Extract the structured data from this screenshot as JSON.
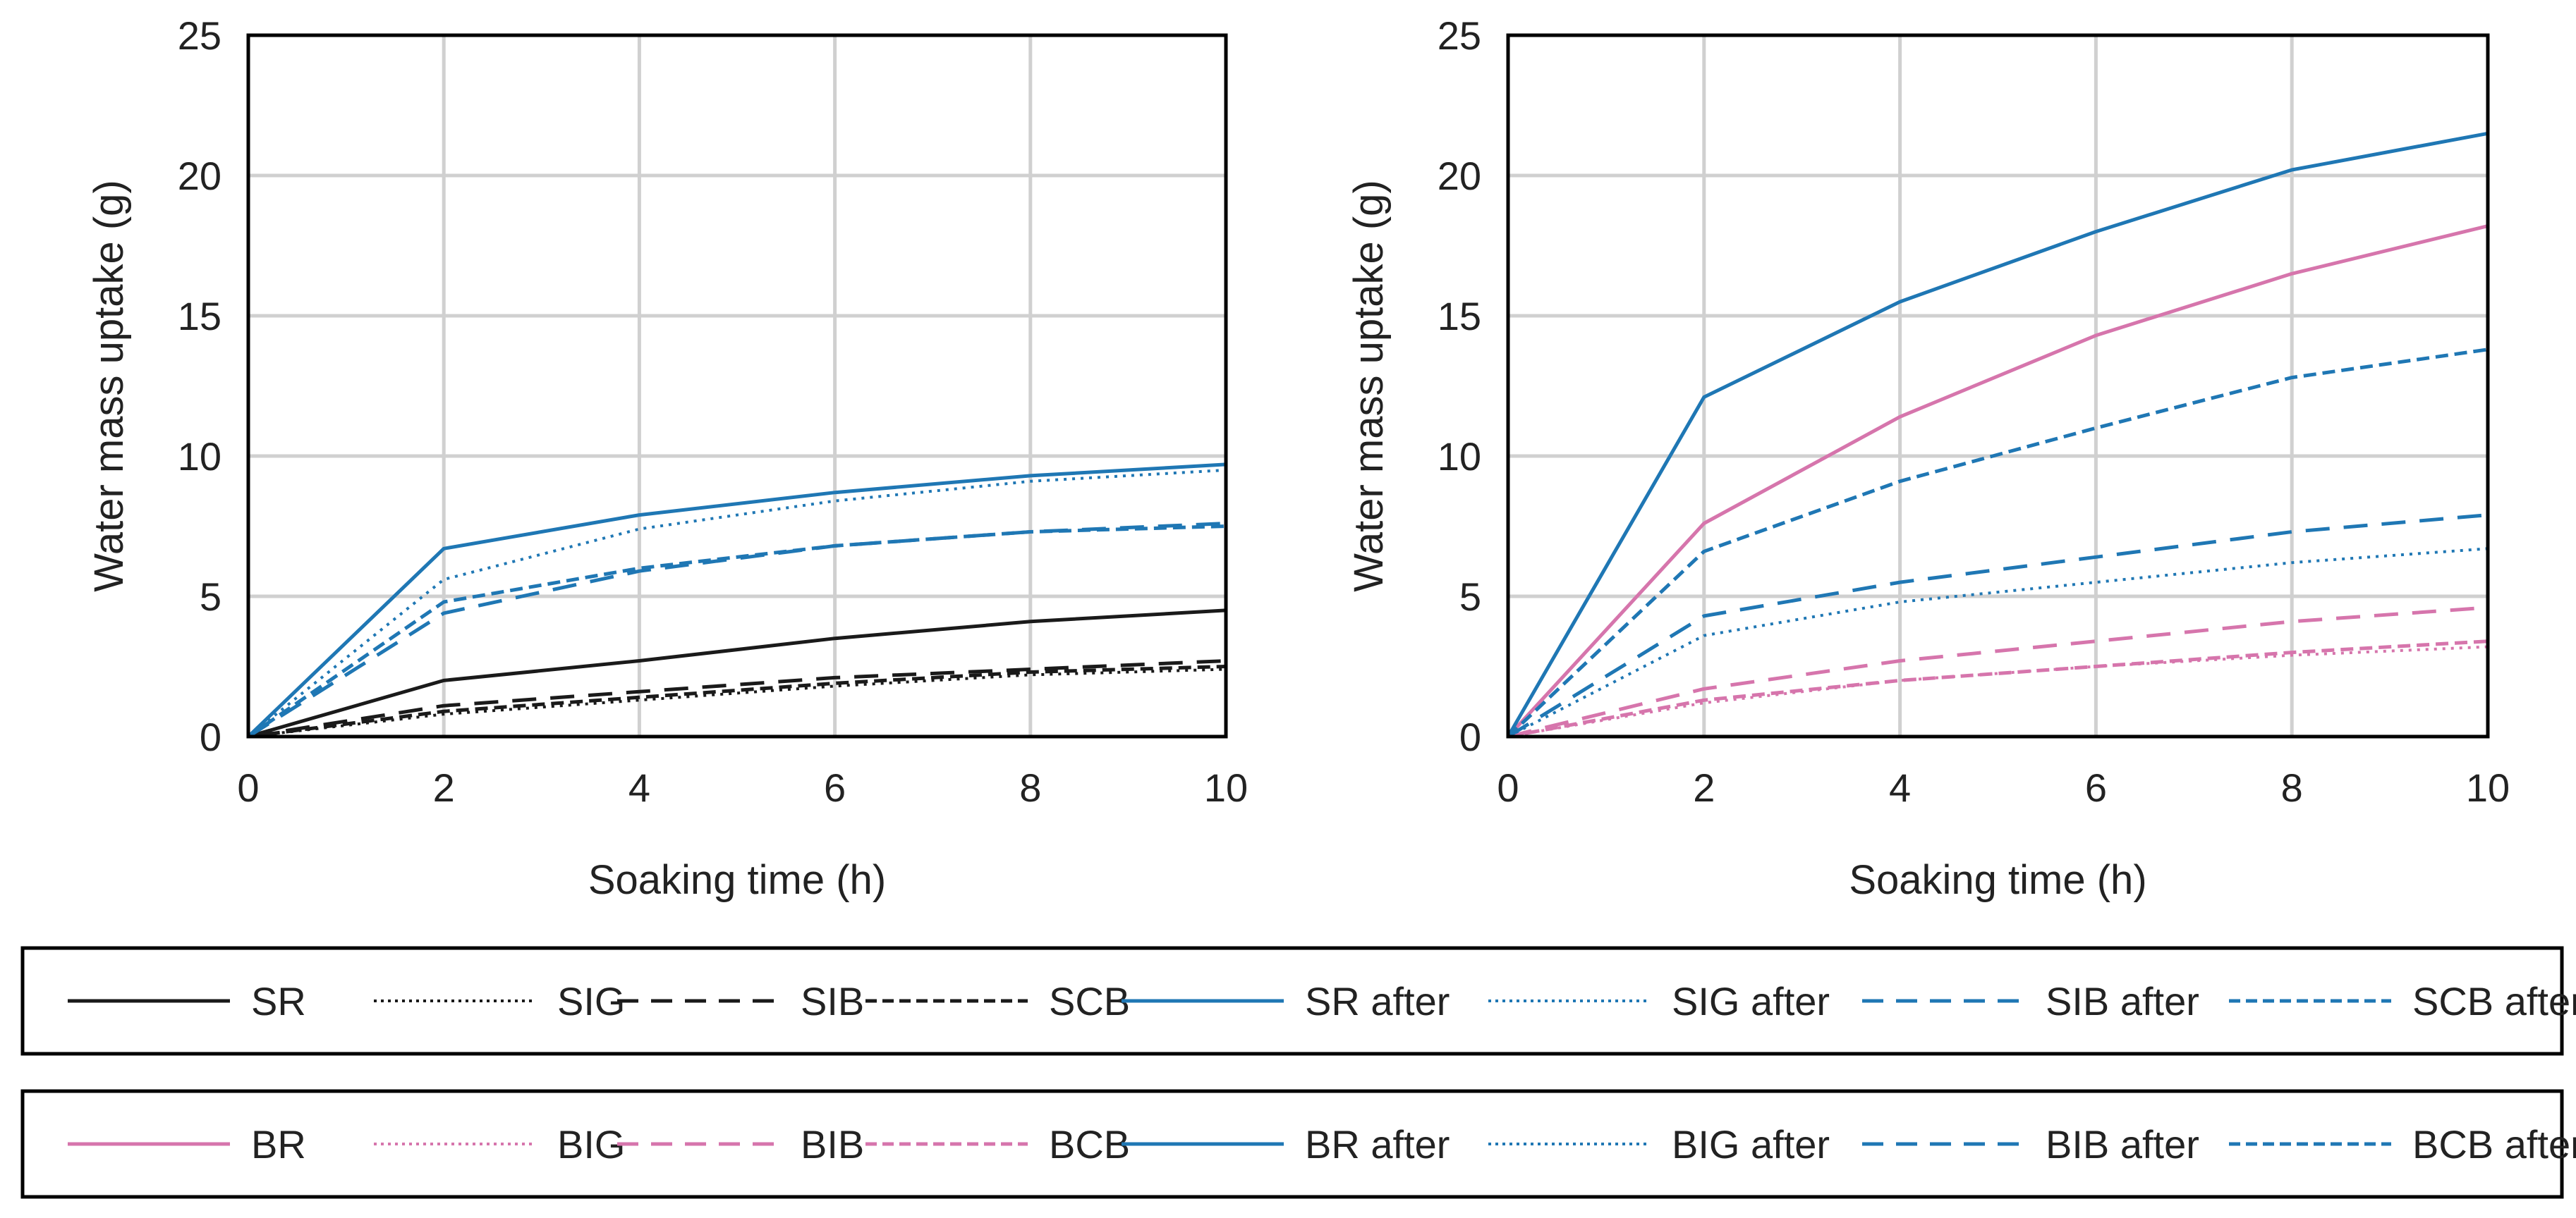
{
  "colors": {
    "black": "#1a1a1a",
    "blue": "#1f77b4",
    "pink": "#d675ac",
    "grid": "#d0d0d0",
    "axis": "#000000"
  },
  "chart_data": [
    {
      "type": "line",
      "title": "",
      "xlabel": "Soaking time (h)",
      "ylabel": "Water mass uptake (g)",
      "xlim": [
        0,
        10
      ],
      "ylim": [
        0,
        25
      ],
      "xticks": [
        0,
        2,
        4,
        6,
        8,
        10
      ],
      "yticks": [
        0,
        5,
        10,
        15,
        20,
        25
      ],
      "grid": true,
      "legend": "below",
      "x": [
        0,
        2,
        4,
        6,
        8,
        10
      ],
      "series": [
        {
          "name": "SR",
          "color": "black",
          "dash": "solid",
          "values": [
            0,
            2.0,
            2.7,
            3.5,
            4.1,
            4.5
          ]
        },
        {
          "name": "SIG",
          "color": "black",
          "dash": "dotted",
          "values": [
            0,
            0.8,
            1.3,
            1.8,
            2.2,
            2.4
          ]
        },
        {
          "name": "SIB",
          "color": "black",
          "dash": "longdash",
          "values": [
            0,
            1.1,
            1.6,
            2.1,
            2.4,
            2.7
          ]
        },
        {
          "name": "SCB",
          "color": "black",
          "dash": "shortdash",
          "values": [
            0,
            0.9,
            1.4,
            1.9,
            2.3,
            2.5
          ]
        },
        {
          "name": "SR after",
          "color": "blue",
          "dash": "solid",
          "values": [
            0,
            6.7,
            7.9,
            8.7,
            9.3,
            9.7
          ]
        },
        {
          "name": "SIG after",
          "color": "blue",
          "dash": "dotted",
          "values": [
            0,
            5.6,
            7.4,
            8.4,
            9.1,
            9.5
          ]
        },
        {
          "name": "SIB after",
          "color": "blue",
          "dash": "longdash",
          "values": [
            0,
            4.4,
            5.9,
            6.8,
            7.3,
            7.6
          ]
        },
        {
          "name": "SCB after",
          "color": "blue",
          "dash": "shortdash",
          "values": [
            0,
            4.8,
            6.0,
            6.8,
            7.3,
            7.5
          ]
        }
      ]
    },
    {
      "type": "line",
      "title": "",
      "xlabel": "Soaking time (h)",
      "ylabel": "Water mass uptake (g)",
      "xlim": [
        0,
        10
      ],
      "ylim": [
        0,
        25
      ],
      "xticks": [
        0,
        2,
        4,
        6,
        8,
        10
      ],
      "yticks": [
        0,
        5,
        10,
        15,
        20,
        25
      ],
      "grid": true,
      "legend": "below",
      "x": [
        0,
        2,
        4,
        6,
        8,
        10
      ],
      "series": [
        {
          "name": "BR",
          "color": "pink",
          "dash": "solid",
          "values": [
            0,
            7.6,
            11.4,
            14.3,
            16.5,
            18.2
          ]
        },
        {
          "name": "BIG",
          "color": "pink",
          "dash": "dotted",
          "values": [
            0,
            1.2,
            2.0,
            2.5,
            2.9,
            3.2
          ]
        },
        {
          "name": "BIB",
          "color": "pink",
          "dash": "longdash",
          "values": [
            0,
            1.7,
            2.7,
            3.4,
            4.1,
            4.6
          ]
        },
        {
          "name": "BCB",
          "color": "pink",
          "dash": "shortdash",
          "values": [
            0,
            1.3,
            2.0,
            2.5,
            3.0,
            3.4
          ]
        },
        {
          "name": "BR after",
          "color": "blue",
          "dash": "solid",
          "values": [
            0,
            12.1,
            15.5,
            18.0,
            20.2,
            21.5
          ]
        },
        {
          "name": "BIG after",
          "color": "blue",
          "dash": "dotted",
          "values": [
            0,
            3.6,
            4.8,
            5.5,
            6.2,
            6.7
          ]
        },
        {
          "name": "BIB after",
          "color": "blue",
          "dash": "longdash",
          "values": [
            0,
            4.3,
            5.5,
            6.4,
            7.3,
            7.9
          ]
        },
        {
          "name": "BCB after",
          "color": "blue",
          "dash": "shortdash",
          "values": [
            0,
            6.6,
            9.1,
            11.0,
            12.8,
            13.8
          ]
        }
      ]
    }
  ]
}
